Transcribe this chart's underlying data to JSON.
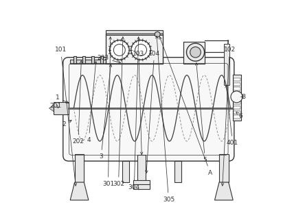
{
  "bg_color": "#ffffff",
  "line_color": "#333333",
  "fill_light": "#f0f0f0",
  "fill_mid": "#e8e8e8",
  "fill_dark": "#d0d0d0",
  "labels_positions": {
    "1": [
      0.075,
      0.565,
      0.135,
      0.535
    ],
    "2": [
      0.105,
      0.445,
      0.148,
      0.468
    ],
    "3": [
      0.27,
      0.3,
      0.315,
      0.725
    ],
    "4": [
      0.215,
      0.375,
      0.248,
      0.738
    ],
    "5": [
      0.735,
      0.285,
      0.695,
      0.732
    ],
    "6": [
      0.895,
      0.482,
      0.872,
      0.502
    ],
    "A": [
      0.758,
      0.228,
      0.528,
      0.848
    ],
    "B": [
      0.905,
      0.568,
      0.895,
      0.568
    ],
    "101": [
      0.09,
      0.778,
      0.158,
      0.158
    ],
    "102": [
      0.845,
      0.778,
      0.812,
      0.158
    ],
    "103": [
      0.438,
      0.762,
      0.452,
      0.298
    ],
    "104": [
      0.508,
      0.762,
      0.472,
      0.215
    ],
    "201": [
      0.068,
      0.528,
      0.088,
      0.512
    ],
    "202": [
      0.168,
      0.368,
      0.182,
      0.742
    ],
    "203": [
      0.278,
      0.742,
      0.368,
      0.718
    ],
    "301": [
      0.302,
      0.178,
      0.312,
      0.848
    ],
    "302": [
      0.348,
      0.178,
      0.368,
      0.848
    ],
    "304": [
      0.418,
      0.162,
      0.438,
      0.848
    ],
    "305": [
      0.572,
      0.108,
      0.518,
      0.852
    ],
    "401": [
      0.858,
      0.362,
      0.828,
      0.632
    ]
  }
}
